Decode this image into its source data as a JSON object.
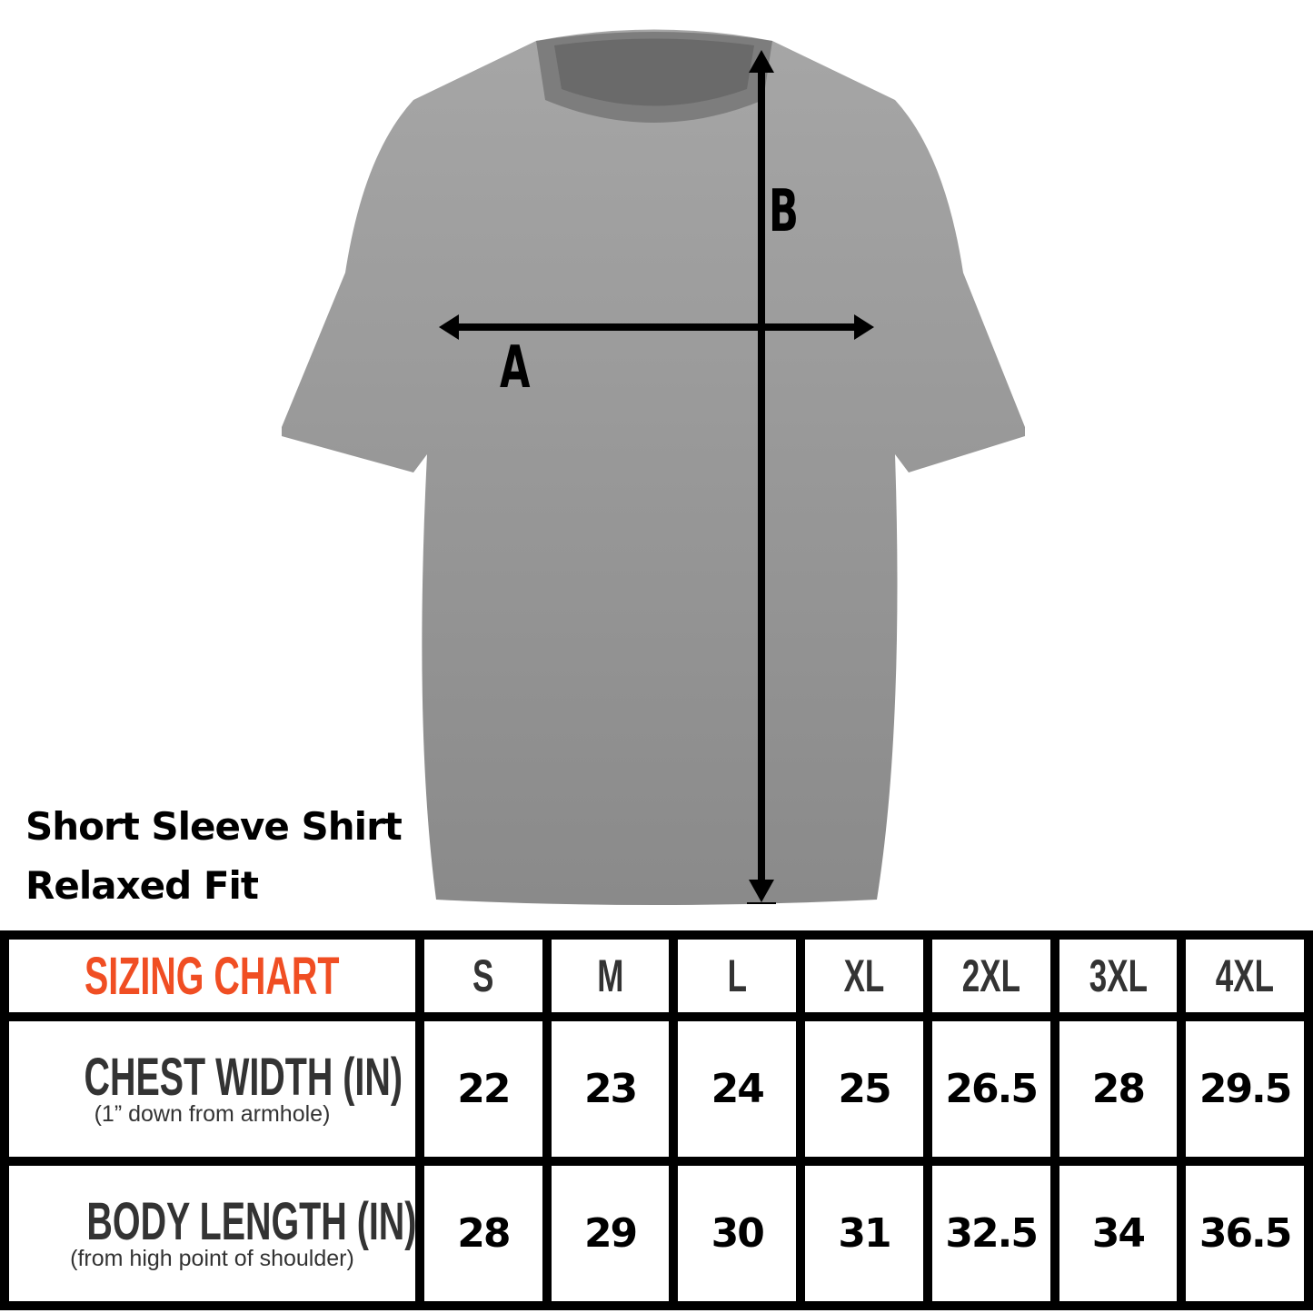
{
  "product": {
    "title_line1": "Short Sleeve Shirt",
    "title_line2": "Relaxed Fit",
    "shirt_color": "#8f8f8f"
  },
  "diagram": {
    "label_a": "A",
    "label_b": "B"
  },
  "table": {
    "heading": "SIZING CHART",
    "heading_color": "#f04e23",
    "sizes": [
      "S",
      "M",
      "L",
      "XL",
      "2XL",
      "3XL",
      "4XL"
    ],
    "rows": [
      {
        "label": "CHEST WIDTH (IN)",
        "sub": "(1” down from armhole)",
        "values": [
          "22",
          "23",
          "24",
          "25",
          "26.5",
          "28",
          "29.5"
        ]
      },
      {
        "label": "BODY LENGTH (IN)",
        "sub": "(from high point of shoulder)",
        "values": [
          "28",
          "29",
          "30",
          "31",
          "32.5",
          "34",
          "36.5"
        ]
      }
    ]
  }
}
